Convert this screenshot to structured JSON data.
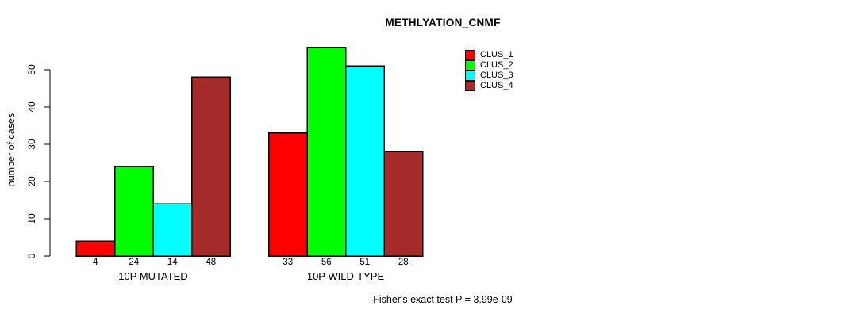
{
  "chart_data": {
    "type": "bar",
    "title": "METHLYATION_CNMF",
    "ylabel": "number of cases",
    "xlabel": "",
    "ylim": [
      0,
      50
    ],
    "yticks": [
      0,
      10,
      20,
      30,
      40,
      50
    ],
    "grid": false,
    "legend_position": "top-right",
    "categories": [
      "10P MUTATED",
      "10P WILD-TYPE"
    ],
    "series": [
      {
        "name": "CLUS_1",
        "color": "#FF0000",
        "values": [
          4,
          33
        ]
      },
      {
        "name": "CLUS_2",
        "color": "#00FF00",
        "values": [
          24,
          56
        ]
      },
      {
        "name": "CLUS_3",
        "color": "#00FFFF",
        "values": [
          14,
          51
        ]
      },
      {
        "name": "CLUS_4",
        "color": "#A52A2A",
        "values": [
          48,
          28
        ]
      }
    ],
    "bar_value_labels_shown": true,
    "annotation": "Fisher's exact test P = 3.99e-09",
    "axis_color": "#000000",
    "bar_border_color": "#000000"
  }
}
